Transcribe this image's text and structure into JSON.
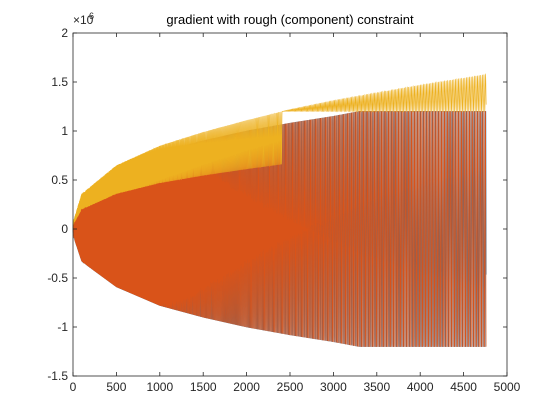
{
  "chart_data": {
    "type": "line",
    "title": "gradient with rough (component) constraint",
    "xlabel": "",
    "ylabel": "",
    "xlim": [
      0,
      5000
    ],
    "ylim": [
      -1500000,
      2000000
    ],
    "x_ticks": [
      0,
      500,
      1000,
      1500,
      2000,
      2500,
      3000,
      3500,
      4000,
      4500,
      5000
    ],
    "x_tick_labels": [
      "0",
      "500",
      "1000",
      "1500",
      "2000",
      "2500",
      "3000",
      "3500",
      "4000",
      "4500",
      "5000"
    ],
    "y_ticks": [
      -1500000,
      -1000000,
      -500000,
      0,
      500000,
      1000000,
      1500000,
      2000000
    ],
    "y_tick_labels": [
      "-1.5",
      "-1",
      "-0.5",
      "0",
      "0.5",
      "1",
      "1.5",
      "2"
    ],
    "y_exponent_base": "×10",
    "y_exponent_power": "6",
    "grid": false,
    "legend": "none",
    "x_end": 4760,
    "series": [
      {
        "color": "#0072BD",
        "description": "oscillating, envelope grows with sqrt(x), amplitude ~1.2e6 at x=3300, clipped at +/-1.2e6 thereafter",
        "envelope_points": [
          [
            10,
            90000
          ],
          [
            100,
            330000
          ],
          [
            500,
            590000
          ],
          [
            1000,
            780000
          ],
          [
            1500,
            900000
          ],
          [
            2000,
            1000000
          ],
          [
            2500,
            1080000
          ],
          [
            3000,
            1150000
          ],
          [
            3300,
            1200000
          ],
          [
            4760,
            1200000
          ]
        ],
        "clip": [
          -1200000,
          1200000
        ]
      },
      {
        "color": "#D95319",
        "description": "oscillating, slightly phase shifted vs blue, same envelope, clipped at +/-1.2e6",
        "envelope_points": [
          [
            10,
            90000
          ],
          [
            100,
            330000
          ],
          [
            500,
            590000
          ],
          [
            1000,
            780000
          ],
          [
            1500,
            900000
          ],
          [
            2000,
            1000000
          ],
          [
            2500,
            1080000
          ],
          [
            3000,
            1150000
          ],
          [
            3300,
            1200000
          ],
          [
            4760,
            1200000
          ]
        ],
        "clip": [
          -1200000,
          1200000
        ]
      },
      {
        "color": "#EDB120",
        "description": "upper band oscillating between 1.2e6 floor and growing upper envelope, peaks reach ~1.58e6 at x=4760",
        "envelope_points": [
          [
            10,
            100000
          ],
          [
            100,
            360000
          ],
          [
            500,
            650000
          ],
          [
            1000,
            850000
          ],
          [
            1500,
            990000
          ],
          [
            2000,
            1110000
          ],
          [
            2500,
            1220000
          ],
          [
            3000,
            1310000
          ],
          [
            3500,
            1390000
          ],
          [
            4000,
            1470000
          ],
          [
            4500,
            1540000
          ],
          [
            4760,
            1580000
          ]
        ],
        "floor": 1200000
      }
    ]
  }
}
